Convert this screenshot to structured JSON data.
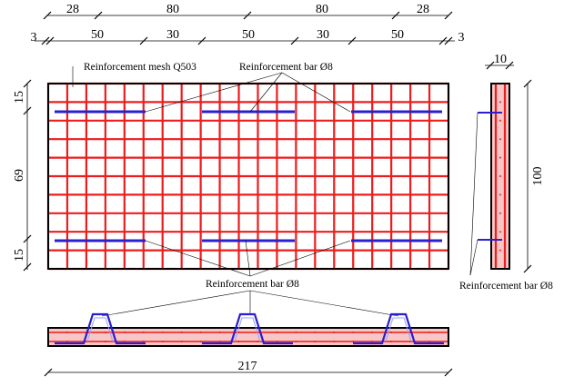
{
  "top_dimensions_row1": [
    "28",
    "80",
    "80",
    "28"
  ],
  "top_dimensions_row2": [
    "3",
    "50",
    "30",
    "50",
    "30",
    "50",
    "3"
  ],
  "left_dimensions": [
    "15",
    "69",
    "15"
  ],
  "side_width": "10",
  "side_height": "100",
  "bottom_length": "217",
  "labels": {
    "mesh": "Reinforcement mesh Q503",
    "bar_top": "Reinforcement bar Ø8",
    "bar_bottom": "Reinforcement bar Ø8",
    "bar_side": "Reinforcement bar Ø8"
  },
  "colors": {
    "mesh": "#ee1c1c",
    "bar": "#2b1fcf",
    "section_fill": "#f7c6c6",
    "outline": "#000000"
  }
}
